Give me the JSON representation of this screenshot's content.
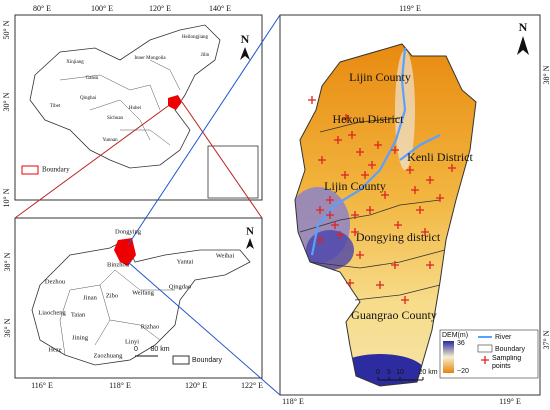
{
  "china_map": {
    "lon_labels": [
      "80° E",
      "100° E",
      "120° E",
      "140° E"
    ],
    "lat_labels": [
      "50° N",
      "30° N",
      "10° N"
    ],
    "north": "N",
    "regions": [
      "Heilongjiang",
      "Jilin",
      "Inner Mongolia",
      "Xinjiang",
      "Gansu",
      "Qinghai",
      "Tibet",
      "Sichuan",
      "Yunnan",
      "Hubei"
    ],
    "legend": "Boundary"
  },
  "shandong_map": {
    "lon_labels": [
      "116° E",
      "118° E",
      "120° E",
      "122° E"
    ],
    "lat_labels": [
      "38° N",
      "36° N"
    ],
    "cities": [
      "Binzhou",
      "Dongying",
      "Yantai",
      "Weihai",
      "Dezhou",
      "Qingdao",
      "Weifang",
      "Jinan",
      "Zibo",
      "Liaocheng",
      "Taian",
      "Rizhao",
      "Linyi",
      "Jining",
      "Heze",
      "Zaozhuang"
    ],
    "scale": [
      "0",
      "80 km"
    ],
    "north": "N",
    "legend": "Boundary"
  },
  "study_area": {
    "lon_top": "119° E",
    "lon_bottom": [
      "118° E",
      "119° E"
    ],
    "lat_labels": [
      "38° N",
      "37° N"
    ],
    "north": "N",
    "districts": [
      "Lijin County",
      "Hekou District",
      "Kenli District",
      "Lijin County",
      "Dongying district",
      "Guangrao County"
    ],
    "legend": {
      "dem_title": "DEM(m)",
      "dem_high": "36",
      "dem_low": "−20",
      "river": "River",
      "boundary": "Boundary",
      "points": "Sampling points"
    },
    "scale": [
      "0",
      "5",
      "10",
      "20 km"
    ]
  }
}
